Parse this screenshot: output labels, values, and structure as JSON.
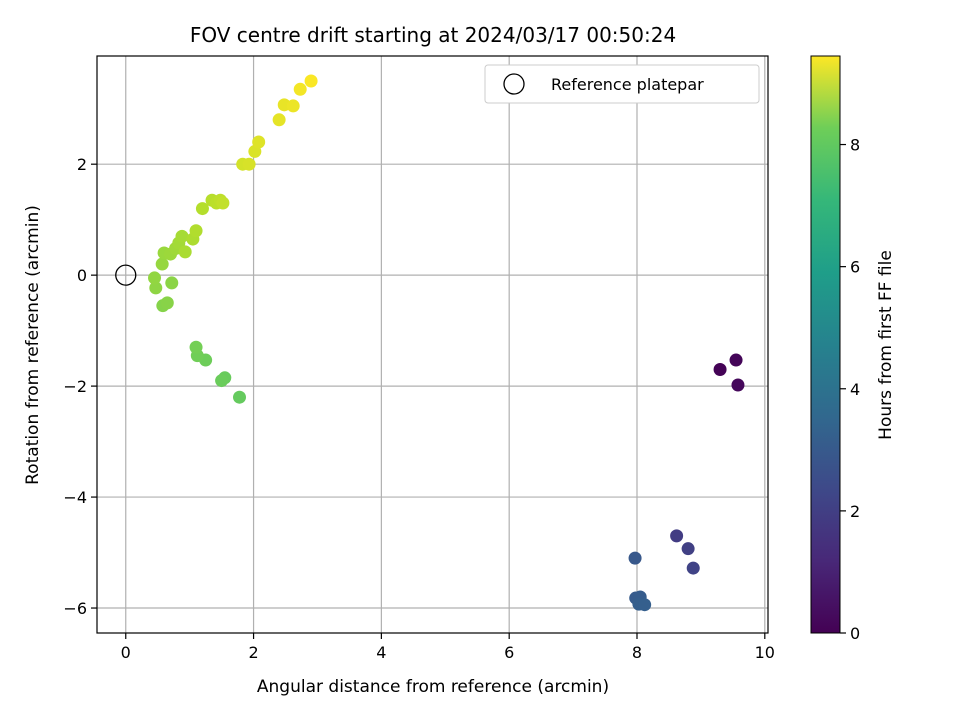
{
  "chart_data": {
    "type": "scatter",
    "title": "FOV centre drift starting at 2024/03/17 00:50:24",
    "xlabel": "Angular distance from reference (arcmin)",
    "ylabel": "Rotation from reference (arcmin)",
    "xlim": [
      -0.45,
      10.05
    ],
    "ylim": [
      -6.45,
      3.95
    ],
    "xticks": [
      0,
      2,
      4,
      6,
      8,
      10
    ],
    "yticks": [
      -6,
      -4,
      -2,
      0,
      2
    ],
    "grid": true,
    "legend": {
      "placement": "top-right",
      "entries": [
        {
          "label": "Reference platepar",
          "marker": "open-circle"
        }
      ]
    },
    "reference_point": {
      "x": 0,
      "y": 0
    },
    "colorbar": {
      "label": "Hours from first FF file",
      "colormap": "viridis",
      "range": [
        0,
        9.45
      ],
      "ticks": [
        0,
        2,
        4,
        6,
        8
      ]
    },
    "points": [
      {
        "x": 9.3,
        "y": -1.7,
        "c": 0.05
      },
      {
        "x": 9.55,
        "y": -1.53,
        "c": 0.12
      },
      {
        "x": 9.58,
        "y": -1.98,
        "c": 0.2
      },
      {
        "x": 8.62,
        "y": -4.7,
        "c": 1.7
      },
      {
        "x": 8.8,
        "y": -4.93,
        "c": 1.8
      },
      {
        "x": 8.88,
        "y": -5.28,
        "c": 1.9
      },
      {
        "x": 7.97,
        "y": -5.1,
        "c": 2.6
      },
      {
        "x": 7.98,
        "y": -5.82,
        "c": 2.7
      },
      {
        "x": 8.05,
        "y": -5.8,
        "c": 2.75
      },
      {
        "x": 8.03,
        "y": -5.93,
        "c": 2.8
      },
      {
        "x": 8.12,
        "y": -5.94,
        "c": 2.85
      },
      {
        "x": 1.78,
        "y": -2.2,
        "c": 7.2
      },
      {
        "x": 1.55,
        "y": -1.85,
        "c": 7.25
      },
      {
        "x": 1.5,
        "y": -1.9,
        "c": 7.3
      },
      {
        "x": 1.25,
        "y": -1.53,
        "c": 7.35
      },
      {
        "x": 1.12,
        "y": -1.45,
        "c": 7.4
      },
      {
        "x": 1.1,
        "y": -1.3,
        "c": 7.45
      },
      {
        "x": 0.58,
        "y": -0.55,
        "c": 7.7
      },
      {
        "x": 0.65,
        "y": -0.5,
        "c": 7.75
      },
      {
        "x": 0.72,
        "y": -0.14,
        "c": 7.8
      },
      {
        "x": 0.47,
        "y": -0.23,
        "c": 7.85
      },
      {
        "x": 0.45,
        "y": -0.05,
        "c": 7.9
      },
      {
        "x": 0.57,
        "y": 0.2,
        "c": 7.95
      },
      {
        "x": 0.6,
        "y": 0.4,
        "c": 8.0
      },
      {
        "x": 0.7,
        "y": 0.38,
        "c": 8.05
      },
      {
        "x": 0.78,
        "y": 0.48,
        "c": 8.1
      },
      {
        "x": 0.83,
        "y": 0.58,
        "c": 8.15
      },
      {
        "x": 0.88,
        "y": 0.7,
        "c": 8.2
      },
      {
        "x": 0.93,
        "y": 0.42,
        "c": 8.25
      },
      {
        "x": 1.05,
        "y": 0.65,
        "c": 8.3
      },
      {
        "x": 1.1,
        "y": 0.8,
        "c": 8.35
      },
      {
        "x": 1.2,
        "y": 1.2,
        "c": 8.4
      },
      {
        "x": 1.35,
        "y": 1.35,
        "c": 8.45
      },
      {
        "x": 1.42,
        "y": 1.3,
        "c": 8.5
      },
      {
        "x": 1.48,
        "y": 1.35,
        "c": 8.55
      },
      {
        "x": 1.52,
        "y": 1.3,
        "c": 8.6
      },
      {
        "x": 1.83,
        "y": 2.0,
        "c": 8.85
      },
      {
        "x": 1.93,
        "y": 2.0,
        "c": 8.9
      },
      {
        "x": 2.02,
        "y": 2.23,
        "c": 8.95
      },
      {
        "x": 2.08,
        "y": 2.4,
        "c": 9.0
      },
      {
        "x": 2.4,
        "y": 2.8,
        "c": 9.1
      },
      {
        "x": 2.48,
        "y": 3.07,
        "c": 9.15
      },
      {
        "x": 2.62,
        "y": 3.05,
        "c": 9.2
      },
      {
        "x": 2.73,
        "y": 3.35,
        "c": 9.3
      },
      {
        "x": 2.9,
        "y": 3.5,
        "c": 9.4
      }
    ]
  }
}
